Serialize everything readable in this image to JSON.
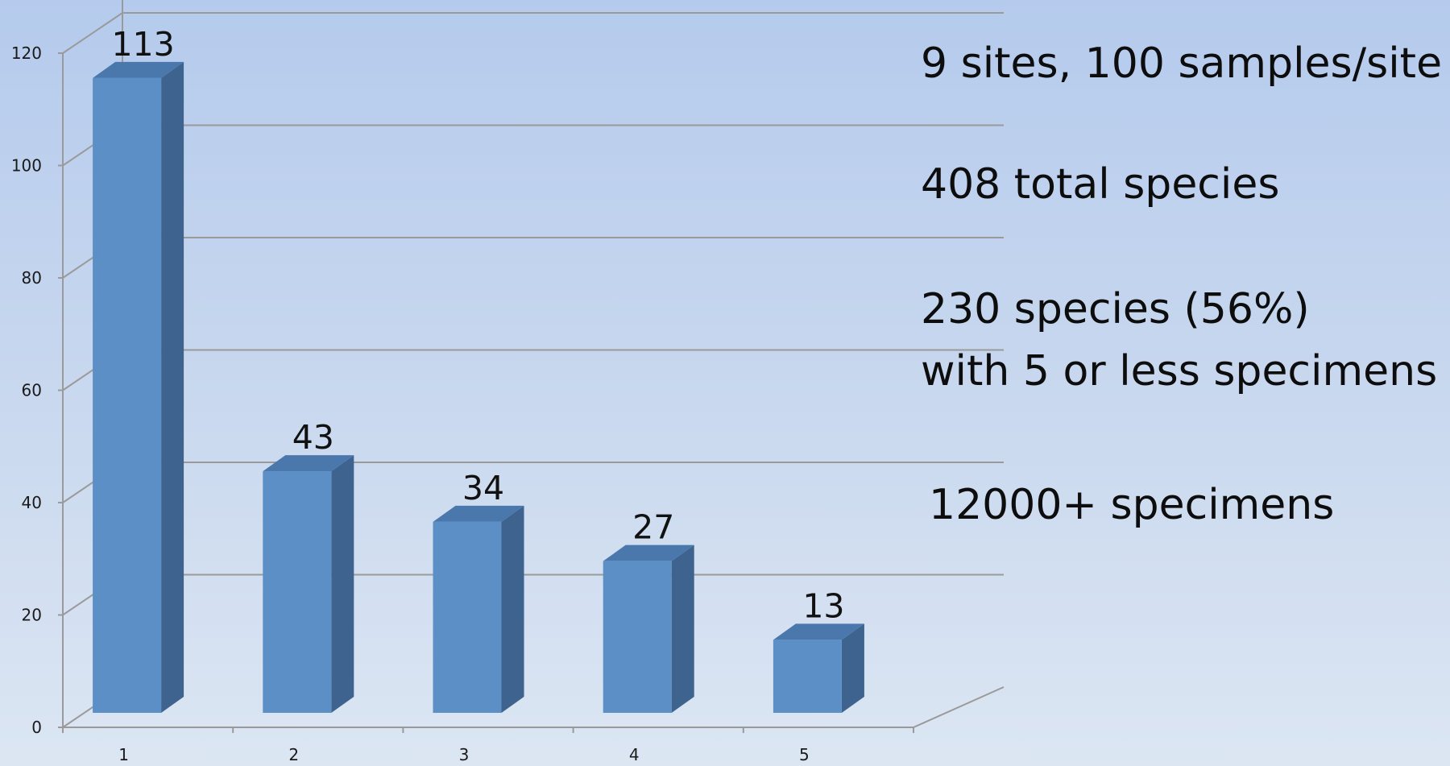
{
  "chart_data": {
    "type": "bar",
    "three_d": true,
    "categories": [
      "1",
      "2",
      "3",
      "4",
      "5"
    ],
    "values": [
      113,
      43,
      34,
      27,
      13
    ],
    "data_labels": [
      "113",
      "43",
      "34",
      "27",
      "13"
    ],
    "yticks": [
      "0",
      "20",
      "40",
      "60",
      "80",
      "100",
      "120"
    ],
    "ylim": [
      0,
      120
    ],
    "grid": true,
    "legend": "none",
    "title": "",
    "xlabel": "",
    "ylabel": "",
    "colors": {
      "bar_front": "#5b8fc6",
      "bar_side": "#3e638e",
      "bar_top": "#4a78ad",
      "grid": "#9a9a9a"
    },
    "annotations": [
      "9 sites, 100 samples/site",
      "408 total species",
      "230 species (56%)",
      "with 5 or less specimens",
      "12000+ specimens"
    ]
  }
}
